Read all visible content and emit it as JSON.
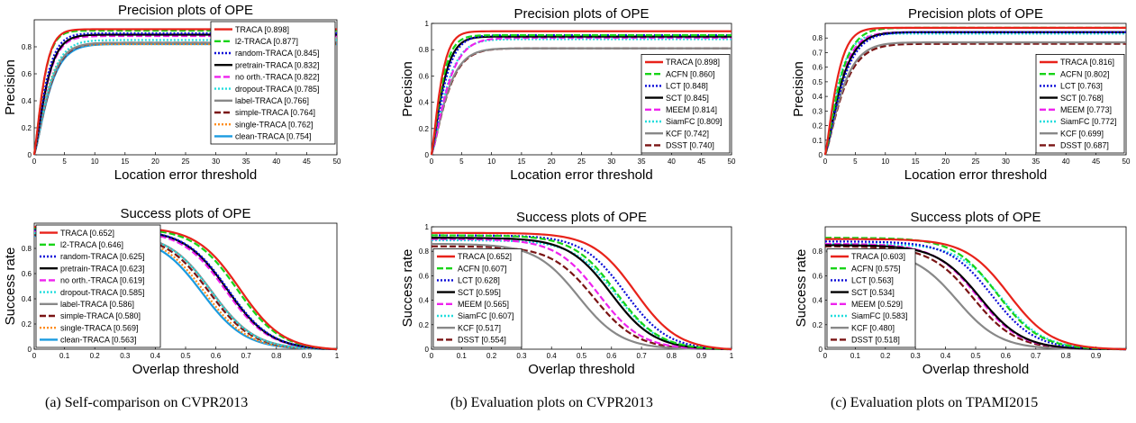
{
  "captions": [
    "(a)  Self-comparison on CVPR2013",
    "(b)  Evaluation plots on CVPR2013",
    "(c)  Evaluation plots on TPAMI2015"
  ],
  "styles": {
    "TRACA": {
      "color": "#e8221a",
      "dash": "solid"
    },
    "l2-TRACA": {
      "color": "#17d417",
      "dash": "dash"
    },
    "random-TRACA": {
      "color": "#0a0ad8",
      "dash": "dot"
    },
    "pretrain-TRACA": {
      "color": "#000000",
      "dash": "solid"
    },
    "no orth.-TRACA": {
      "color": "#ee22ee",
      "dash": "dash"
    },
    "dropout-TRACA": {
      "color": "#22dddd",
      "dash": "dot"
    },
    "label-TRACA": {
      "color": "#888888",
      "dash": "solid"
    },
    "simple-TRACA": {
      "color": "#7a1414",
      "dash": "dash"
    },
    "single-TRACA": {
      "color": "#ff8c1a",
      "dash": "dot"
    },
    "clean-TRACA": {
      "color": "#1a9be0",
      "dash": "solid"
    },
    "ACFN": {
      "color": "#17d417",
      "dash": "dash"
    },
    "LCT": {
      "color": "#0a0ad8",
      "dash": "dot"
    },
    "SCT": {
      "color": "#000000",
      "dash": "solid"
    },
    "MEEM": {
      "color": "#ee22ee",
      "dash": "dash"
    },
    "SiamFC": {
      "color": "#22dddd",
      "dash": "dot"
    },
    "KCF": {
      "color": "#888888",
      "dash": "solid"
    },
    "DSST": {
      "color": "#7a1414",
      "dash": "dash"
    }
  },
  "chart_data": [
    {
      "type": "line",
      "kind": "precision",
      "panel": "a",
      "title": "Precision plots of OPE",
      "xlabel": "Location error threshold",
      "ylabel": "Precision",
      "xlim": [
        0,
        50
      ],
      "ylim": [
        0,
        1
      ],
      "xticks": [
        "0",
        "5",
        "10",
        "15",
        "20",
        "25",
        "30",
        "35",
        "40",
        "45",
        "50"
      ],
      "yticks": [
        "0",
        "0.2",
        "0.4",
        "0.6",
        "0.8"
      ],
      "ytick_values": [
        0,
        0.2,
        0.4,
        0.6,
        0.8
      ],
      "legend": "top-right",
      "series": [
        {
          "name": "TRACA",
          "label": "TRACA [0.898]",
          "score": 0.898,
          "final": 0.93
        },
        {
          "name": "l2-TRACA",
          "label": "l2-TRACA [0.877]",
          "score": 0.877,
          "final": 0.92
        },
        {
          "name": "random-TRACA",
          "label": "random-TRACA [0.845]",
          "score": 0.845,
          "final": 0.9
        },
        {
          "name": "pretrain-TRACA",
          "label": "pretrain-TRACA [0.832]",
          "score": 0.832,
          "final": 0.89
        },
        {
          "name": "no orth.-TRACA",
          "label": "no orth.-TRACA [0.822]",
          "score": 0.822,
          "final": 0.88
        },
        {
          "name": "dropout-TRACA",
          "label": "dropout-TRACA [0.785]",
          "score": 0.785,
          "final": 0.85
        },
        {
          "name": "label-TRACA",
          "label": "label-TRACA [0.766]",
          "score": 0.766,
          "final": 0.83
        },
        {
          "name": "simple-TRACA",
          "label": "simple-TRACA [0.764]",
          "score": 0.764,
          "final": 0.83
        },
        {
          "name": "single-TRACA",
          "label": "single-TRACA [0.762]",
          "score": 0.762,
          "final": 0.82
        },
        {
          "name": "clean-TRACA",
          "label": "clean-TRACA [0.754]",
          "score": 0.754,
          "final": 0.82
        }
      ]
    },
    {
      "type": "line",
      "kind": "success",
      "panel": "a",
      "title": "Success plots of OPE",
      "xlabel": "Overlap threshold",
      "ylabel": "Success rate",
      "xlim": [
        0,
        1
      ],
      "ylim": [
        0,
        1
      ],
      "xticks": [
        "0",
        "0.1",
        "0.2",
        "0.3",
        "0.4",
        "0.5",
        "0.6",
        "0.7",
        "0.8",
        "0.9",
        "1"
      ],
      "yticks": [
        "0",
        "0.2",
        "0.4",
        "0.6",
        "0.8"
      ],
      "ytick_values": [
        0,
        0.2,
        0.4,
        0.6,
        0.8
      ],
      "legend": "bottom-left",
      "series": [
        {
          "name": "TRACA",
          "label": "TRACA [0.652]",
          "score": 0.652,
          "start": 0.97
        },
        {
          "name": "l2-TRACA",
          "label": "l2-TRACA [0.646]",
          "score": 0.646,
          "start": 0.96
        },
        {
          "name": "random-TRACA",
          "label": "random-TRACA [0.625]",
          "score": 0.625,
          "start": 0.95
        },
        {
          "name": "pretrain-TRACA",
          "label": "pretrain-TRACA [0.623]",
          "score": 0.623,
          "start": 0.95
        },
        {
          "name": "no orth.-TRACA",
          "label": "no orth.-TRACA [0.619]",
          "score": 0.619,
          "start": 0.94
        },
        {
          "name": "dropout-TRACA",
          "label": "dropout-TRACA [0.585]",
          "score": 0.585,
          "start": 0.92
        },
        {
          "name": "label-TRACA",
          "label": "label-TRACA [0.586]",
          "score": 0.586,
          "start": 0.92
        },
        {
          "name": "simple-TRACA",
          "label": "simple-TRACA [0.580]",
          "score": 0.58,
          "start": 0.91
        },
        {
          "name": "single-TRACA",
          "label": "single-TRACA [0.569]",
          "score": 0.569,
          "start": 0.91
        },
        {
          "name": "clean-TRACA",
          "label": "clean-TRACA [0.563]",
          "score": 0.563,
          "start": 0.9
        }
      ]
    },
    {
      "type": "line",
      "kind": "precision",
      "panel": "b",
      "title": "Precision plots of OPE",
      "xlabel": "Location error threshold",
      "ylabel": "Precision",
      "xlim": [
        0,
        50
      ],
      "ylim": [
        0,
        1
      ],
      "xticks": [
        "0",
        "5",
        "10",
        "15",
        "20",
        "25",
        "30",
        "35",
        "40",
        "45",
        "50"
      ],
      "yticks": [
        "0",
        "0.2",
        "0.4",
        "0.6",
        "0.8",
        "1"
      ],
      "ytick_values": [
        0,
        0.2,
        0.4,
        0.6,
        0.8,
        1
      ],
      "legend": "bottom-right",
      "series": [
        {
          "name": "TRACA",
          "label": "TRACA [0.898]",
          "score": 0.898,
          "final": 0.94
        },
        {
          "name": "ACFN",
          "label": "ACFN [0.860]",
          "score": 0.86,
          "final": 0.91
        },
        {
          "name": "LCT",
          "label": "LCT [0.848]",
          "score": 0.848,
          "final": 0.91
        },
        {
          "name": "SCT",
          "label": "SCT [0.845]",
          "score": 0.845,
          "final": 0.9
        },
        {
          "name": "MEEM",
          "label": "MEEM [0.814]",
          "score": 0.814,
          "final": 0.89
        },
        {
          "name": "SiamFC",
          "label": "SiamFC [0.809]",
          "score": 0.809,
          "final": 0.88
        },
        {
          "name": "KCF",
          "label": "KCF [0.742]",
          "score": 0.742,
          "final": 0.81
        },
        {
          "name": "DSST",
          "label": "DSST [0.740]",
          "score": 0.74,
          "final": 0.81
        }
      ]
    },
    {
      "type": "line",
      "kind": "success",
      "panel": "b",
      "title": "Success plots of OPE",
      "xlabel": "Overlap threshold",
      "ylabel": "Success rate",
      "xlim": [
        0,
        1
      ],
      "ylim": [
        0,
        1
      ],
      "xticks": [
        "0",
        "0.1",
        "0.2",
        "0.3",
        "0.4",
        "0.5",
        "0.6",
        "0.7",
        "0.8",
        "0.9",
        "1"
      ],
      "yticks": [
        "0",
        "0.2",
        "0.4",
        "0.6",
        "0.8",
        "1"
      ],
      "ytick_values": [
        0,
        0.2,
        0.4,
        0.6,
        0.8,
        1
      ],
      "legend": "bottom-left",
      "series": [
        {
          "name": "TRACA",
          "label": "TRACA [0.652]",
          "score": 0.652,
          "start": 0.95
        },
        {
          "name": "ACFN",
          "label": "ACFN [0.607]",
          "score": 0.607,
          "start": 0.93
        },
        {
          "name": "LCT",
          "label": "LCT [0.628]",
          "score": 0.628,
          "start": 0.93
        },
        {
          "name": "SCT",
          "label": "SCT [0.595]",
          "score": 0.595,
          "start": 0.91
        },
        {
          "name": "MEEM",
          "label": "MEEM [0.565]",
          "score": 0.565,
          "start": 0.9
        },
        {
          "name": "SiamFC",
          "label": "SiamFC [0.607]",
          "score": 0.607,
          "start": 0.89
        },
        {
          "name": "KCF",
          "label": "KCF [0.517]",
          "score": 0.517,
          "start": 0.86
        },
        {
          "name": "DSST",
          "label": "DSST [0.554]",
          "score": 0.554,
          "start": 0.84
        }
      ]
    },
    {
      "type": "line",
      "kind": "precision",
      "panel": "c",
      "title": "Precision plots of OPE",
      "xlabel": "Location error threshold",
      "ylabel": "Precision",
      "xlim": [
        0,
        50
      ],
      "ylim": [
        0,
        0.9
      ],
      "xticks": [
        "0",
        "5",
        "10",
        "15",
        "20",
        "25",
        "30",
        "35",
        "40",
        "45",
        "50"
      ],
      "yticks": [
        "0",
        "0.1",
        "0.2",
        "0.3",
        "0.4",
        "0.5",
        "0.6",
        "0.7",
        "0.8"
      ],
      "ytick_values": [
        0,
        0.1,
        0.2,
        0.3,
        0.4,
        0.5,
        0.6,
        0.7,
        0.8
      ],
      "legend": "bottom-right",
      "series": [
        {
          "name": "TRACA",
          "label": "TRACA [0.816]",
          "score": 0.816,
          "final": 0.87
        },
        {
          "name": "ACFN",
          "label": "ACFN [0.802]",
          "score": 0.802,
          "final": 0.87
        },
        {
          "name": "LCT",
          "label": "LCT [0.763]",
          "score": 0.763,
          "final": 0.84
        },
        {
          "name": "SCT",
          "label": "SCT [0.768]",
          "score": 0.768,
          "final": 0.84
        },
        {
          "name": "MEEM",
          "label": "MEEM [0.773]",
          "score": 0.773,
          "final": 0.84
        },
        {
          "name": "SiamFC",
          "label": "SiamFC [0.772]",
          "score": 0.772,
          "final": 0.83
        },
        {
          "name": "KCF",
          "label": "KCF [0.699]",
          "score": 0.699,
          "final": 0.77
        },
        {
          "name": "DSST",
          "label": "DSST [0.687]",
          "score": 0.687,
          "final": 0.76
        }
      ]
    },
    {
      "type": "line",
      "kind": "success",
      "panel": "c",
      "title": "Success plots of OPE",
      "xlabel": "Overlap threshold",
      "ylabel": "Success rate",
      "xlim": [
        0,
        1
      ],
      "ylim": [
        0,
        1
      ],
      "xticks": [
        "0",
        "0.1",
        "0.2",
        "0.3",
        "0.4",
        "0.5",
        "0.6",
        "0.7",
        "0.8",
        "0.9",
        ""
      ],
      "yticks": [
        "0",
        "0.2",
        "0.4",
        "0.6",
        "0.8"
      ],
      "ytick_values": [
        0,
        0.2,
        0.4,
        0.6,
        0.8
      ],
      "legend": "bottom-left",
      "series": [
        {
          "name": "TRACA",
          "label": "TRACA [0.603]",
          "score": 0.603,
          "start": 0.9
        },
        {
          "name": "ACFN",
          "label": "ACFN [0.575]",
          "score": 0.575,
          "start": 0.91
        },
        {
          "name": "LCT",
          "label": "LCT [0.563]",
          "score": 0.563,
          "start": 0.88
        },
        {
          "name": "SCT",
          "label": "SCT [0.534]",
          "score": 0.534,
          "start": 0.85
        },
        {
          "name": "MEEM",
          "label": "MEEM [0.529]",
          "score": 0.529,
          "start": 0.86
        },
        {
          "name": "SiamFC",
          "label": "SiamFC [0.583]",
          "score": 0.583,
          "start": 0.86
        },
        {
          "name": "KCF",
          "label": "KCF [0.480]",
          "score": 0.48,
          "start": 0.8
        },
        {
          "name": "DSST",
          "label": "DSST [0.518]",
          "score": 0.518,
          "start": 0.84
        }
      ]
    }
  ]
}
